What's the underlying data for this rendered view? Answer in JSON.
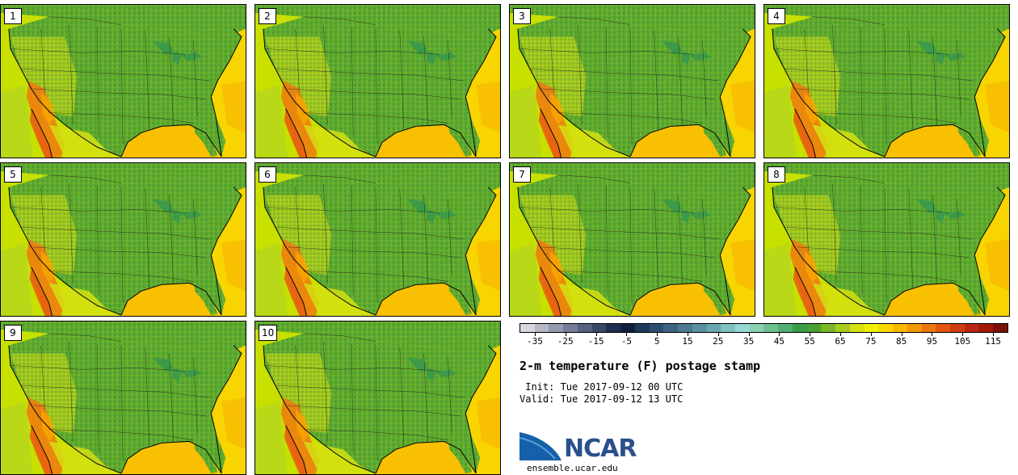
{
  "figure": {
    "title": "2-m temperature (F) postage stamp",
    "init": " Init: Tue 2017-09-12 00 UTC",
    "valid": "Valid: Tue 2017-09-12 13 UTC",
    "site": "ensemble.ucar.edu",
    "logo": "NCAR"
  },
  "panels": [
    {
      "label": "1"
    },
    {
      "label": "2"
    },
    {
      "label": "3"
    },
    {
      "label": "4"
    },
    {
      "label": "5"
    },
    {
      "label": "6"
    },
    {
      "label": "7"
    },
    {
      "label": "8"
    },
    {
      "label": "9"
    },
    {
      "label": "10"
    }
  ],
  "colorbar": {
    "tick_labels": [
      "-35",
      "-25",
      "-15",
      "-5",
      "5",
      "15",
      "25",
      "35",
      "45",
      "55",
      "65",
      "75",
      "85",
      "95",
      "105",
      "115"
    ],
    "tick_values": [
      -35,
      -25,
      -15,
      -5,
      5,
      15,
      25,
      35,
      45,
      55,
      65,
      75,
      85,
      95,
      105,
      115
    ],
    "min": -40,
    "max": 120,
    "step": 5,
    "colors": [
      "#d6d7e0",
      "#b6b8c8",
      "#969ab0",
      "#767c98",
      "#566080",
      "#3a4868",
      "#1f2e50",
      "#0f1e3c",
      "#1e3a5a",
      "#2d4f6e",
      "#3c6482",
      "#4b7a92",
      "#5a90a2",
      "#6ca8b2",
      "#82c0c2",
      "#98d6d4",
      "#8ad0b0",
      "#6cc090",
      "#4fb070",
      "#3c9a48",
      "#4aa030",
      "#78b828",
      "#a6cc20",
      "#d4e010",
      "#f0f000",
      "#f8d800",
      "#f8b800",
      "#f09800",
      "#e87810",
      "#e05810",
      "#d03c10",
      "#b82810",
      "#a01808",
      "#7a1008"
    ]
  },
  "legend_colors": {
    "ocean_gulf": "#f8c000",
    "ocean_atlantic": "#f8d400",
    "ocean_pacific": "#c8e000",
    "land_base": "#5aa830",
    "desert": "#f07810"
  }
}
